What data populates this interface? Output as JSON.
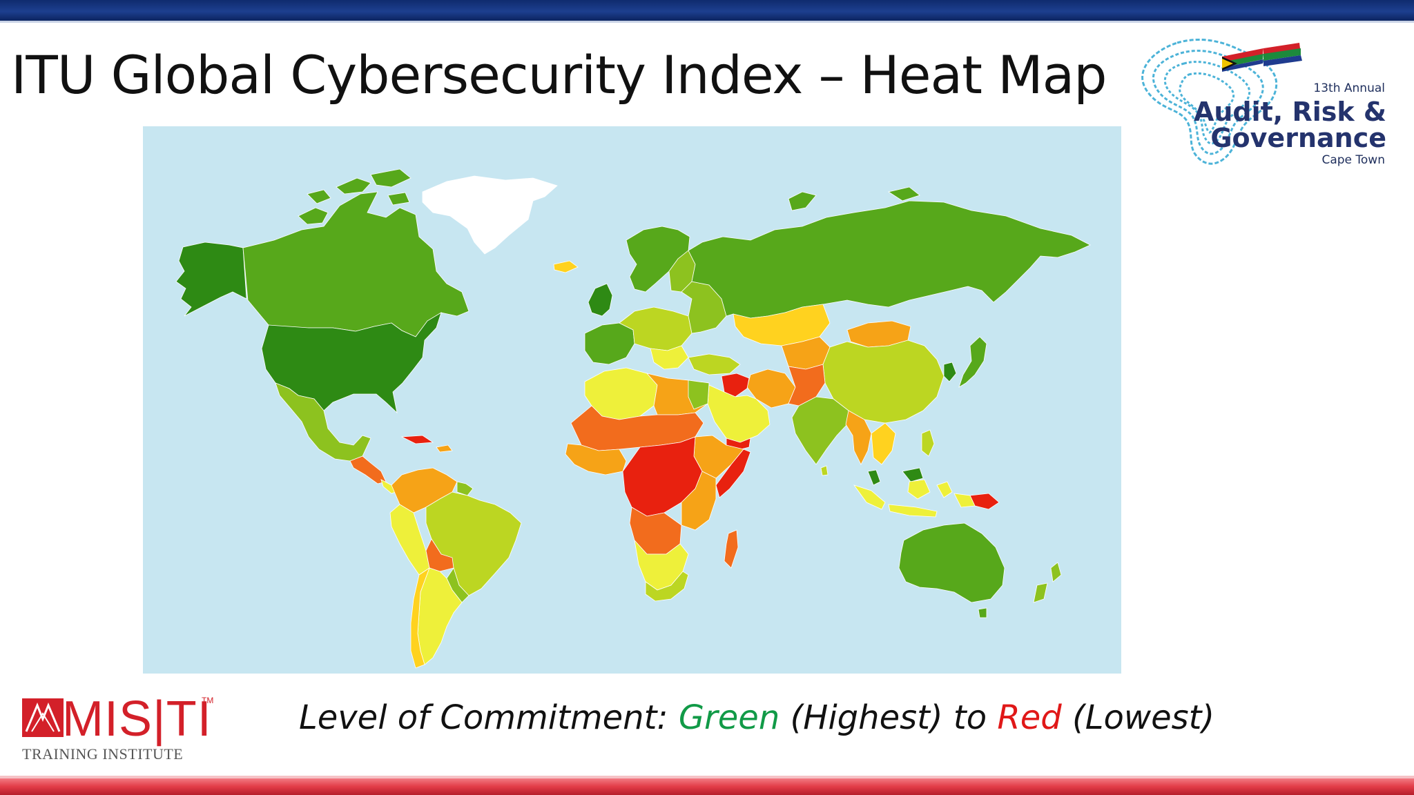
{
  "slide": {
    "title": "ITU Global Cybersecurity Index – Heat Map"
  },
  "legend": {
    "prefix": "Level of Commitment: ",
    "green_label": "Green",
    "middle": " (Highest) to ",
    "red_label": "Red",
    "suffix": " (Lowest)"
  },
  "colors": {
    "top_bar": "#1d3f8f",
    "bottom_bar": "#e23b47",
    "ocean": "#c7e6f1",
    "highest": "#2e8a14",
    "high": "#57a81b",
    "upper_mid": "#8dc21f",
    "mid": "#bcd622",
    "lower_mid": "#eef03a",
    "low_mid": "#ffd21f",
    "low": "#f6a317",
    "lower": "#f26c1d",
    "lowest": "#e8210f",
    "no_data": "#ffffff",
    "legend_green": "#119a47",
    "legend_red": "#e01818"
  },
  "logos": {
    "conference": {
      "annual": "13th Annual",
      "line1": "Audit, Risk &",
      "line2": "Governance",
      "city": "Cape Town"
    },
    "misti": {
      "wordmark": "MIS|TI",
      "tm": "TM",
      "subtitle": "TRAINING INSTITUTE"
    }
  }
}
